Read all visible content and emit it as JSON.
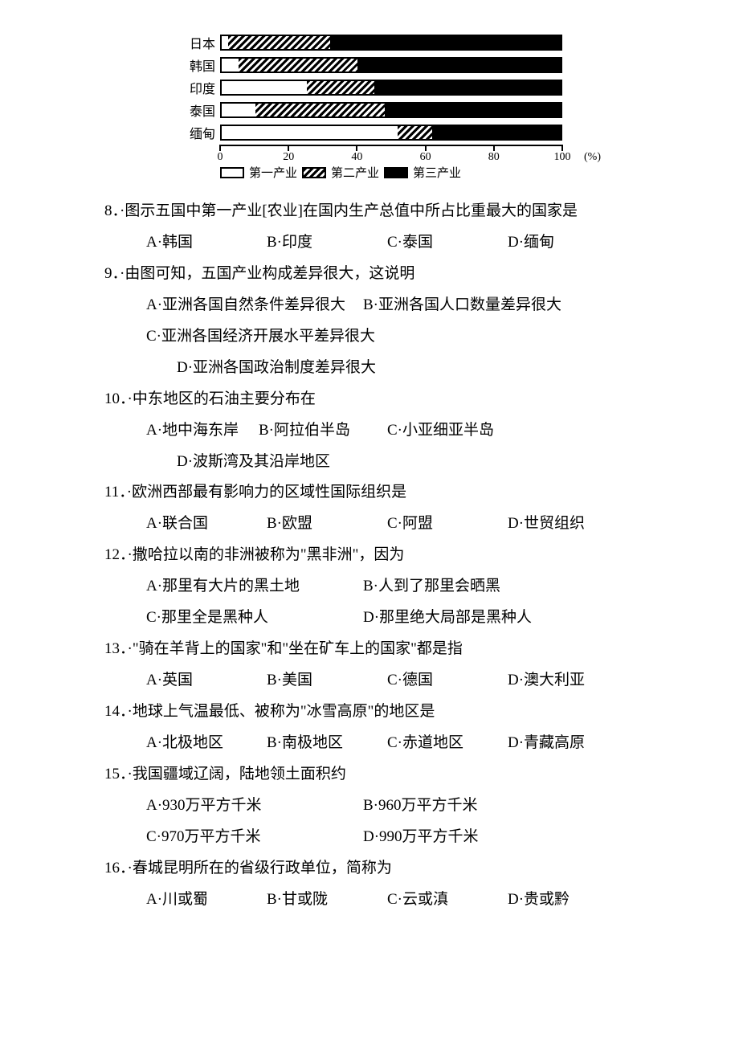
{
  "chart": {
    "type": "stacked-bar-horizontal",
    "axis_max": 100,
    "axis_unit": "(%)",
    "ticks": [
      0,
      20,
      40,
      60,
      80,
      100
    ],
    "legend": [
      {
        "label": "第一产业",
        "fill": "white"
      },
      {
        "label": "第二产业",
        "fill": "hatch"
      },
      {
        "label": "第三产业",
        "fill": "black"
      }
    ],
    "rows": [
      {
        "label": "日本",
        "seg1": 2,
        "seg2": 30,
        "seg3": 68
      },
      {
        "label": "韩国",
        "seg1": 5,
        "seg2": 35,
        "seg3": 60
      },
      {
        "label": "印度",
        "seg1": 25,
        "seg2": 20,
        "seg3": 55
      },
      {
        "label": "泰国",
        "seg1": 10,
        "seg2": 38,
        "seg3": 52
      },
      {
        "label": "缅甸",
        "seg1": 52,
        "seg2": 10,
        "seg3": 38
      }
    ]
  },
  "questions": [
    {
      "num": "8",
      "stem": "图示五国中第一产业[农业]在国内生产总值中所占比重最大的国家是",
      "layout": "4col",
      "options": {
        "A": "韩国",
        "B": "印度",
        "C": "泰国",
        "D": "缅甸"
      }
    },
    {
      "num": "9",
      "stem": "由图可知，五国产业构成差异很大，这说明",
      "layout": "2col-then-d",
      "options": {
        "A": "亚洲各国自然条件差异很大",
        "B": "亚洲各国人口数量差异很大",
        "C": "亚洲各国经济开展水平差异很大",
        "D": "亚洲各国政治制度差异很大"
      }
    },
    {
      "num": "10",
      "stem": "中东地区的石油主要分布在",
      "layout": "3then-d",
      "options": {
        "A": "地中海东岸",
        "B": "阿拉伯半岛",
        "C": "小亚细亚半岛",
        "D": "波斯湾及其沿岸地区"
      }
    },
    {
      "num": "11",
      "stem": "欧洲西部最有影响力的区域性国际组织是",
      "layout": "4col",
      "options": {
        "A": "联合国",
        "B": "欧盟",
        "C": "阿盟",
        "D": "世贸组织"
      }
    },
    {
      "num": "12",
      "stem": "撒哈拉以南的非洲被称为\"黑非洲\"，因为",
      "layout": "2col2",
      "options": {
        "A": "那里有大片的黑土地",
        "B": "人到了那里会晒黑",
        "C": "那里全是黑种人",
        "D": "那里绝大局部是黑种人"
      }
    },
    {
      "num": "13",
      "stem": "\"骑在羊背上的国家\"和\"坐在矿车上的国家\"都是指",
      "layout": "4col",
      "options": {
        "A": "英国",
        "B": "美国",
        "C": "德国",
        "D": "澳大利亚"
      }
    },
    {
      "num": "14",
      "stem": "地球上气温最低、被称为\"冰雪高原\"的地区是",
      "layout": "4col",
      "options": {
        "A": "北极地区",
        "B": "南极地区",
        "C": "赤道地区",
        "D": "青藏高原"
      }
    },
    {
      "num": "15",
      "stem": "我国疆域辽阔，陆地领土面积约",
      "layout": "2col2",
      "options": {
        "A": "930万平方千米",
        "B": "960万平方千米",
        "C": "970万平方千米",
        "D": "990万平方千米"
      }
    },
    {
      "num": "16",
      "stem": "春城昆明所在的省级行政单位，简称为",
      "layout": "4col",
      "options": {
        "A": "川或蜀",
        "B": "甘或陇",
        "C": "云或滇",
        "D": "贵或黔"
      }
    }
  ]
}
